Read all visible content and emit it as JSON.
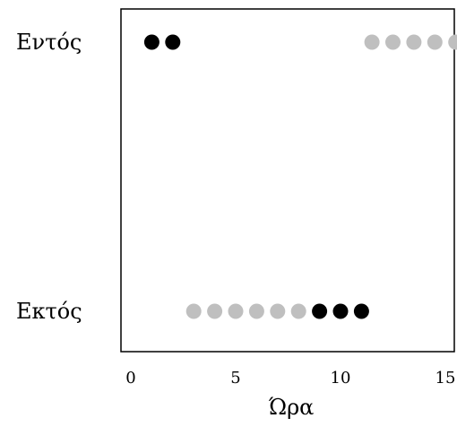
{
  "chart_data": {
    "type": "scatter",
    "title": "",
    "xlabel": "Ώρα",
    "ylabel": "",
    "xlim": [
      0,
      15
    ],
    "x_ticks": [
      "0",
      "5",
      "10",
      "15"
    ],
    "x_tick_values": [
      0,
      5,
      10,
      15
    ],
    "categories": [
      "Εντός",
      "Εκτός"
    ],
    "grid": false,
    "legend": "none",
    "colors": {
      "dark": "#000000",
      "light": "#bfbfbf"
    },
    "series": [
      {
        "color_key": "dark",
        "points": [
          {
            "x": 1.0,
            "category": "Εντός"
          },
          {
            "x": 2.0,
            "category": "Εντός"
          },
          {
            "x": 9.0,
            "category": "Εκτός"
          },
          {
            "x": 10.0,
            "category": "Εκτός"
          },
          {
            "x": 11.0,
            "category": "Εκτός"
          }
        ]
      },
      {
        "color_key": "light",
        "points": [
          {
            "x": 11.5,
            "category": "Εντός"
          },
          {
            "x": 12.5,
            "category": "Εντός"
          },
          {
            "x": 13.5,
            "category": "Εντός"
          },
          {
            "x": 14.5,
            "category": "Εντός"
          },
          {
            "x": 15.5,
            "category": "Εντός"
          },
          {
            "x": 3.0,
            "category": "Εκτός"
          },
          {
            "x": 4.0,
            "category": "Εκτός"
          },
          {
            "x": 5.0,
            "category": "Εκτός"
          },
          {
            "x": 6.0,
            "category": "Εκτός"
          },
          {
            "x": 7.0,
            "category": "Εκτός"
          },
          {
            "x": 8.0,
            "category": "Εκτός"
          }
        ]
      }
    ]
  }
}
